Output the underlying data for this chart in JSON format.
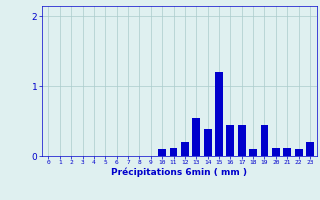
{
  "hours": [
    0,
    1,
    2,
    3,
    4,
    5,
    6,
    7,
    8,
    9,
    10,
    11,
    12,
    13,
    14,
    15,
    16,
    17,
    18,
    19,
    20,
    21,
    22,
    23
  ],
  "values": [
    0.0,
    0.0,
    0.0,
    0.0,
    0.0,
    0.0,
    0.0,
    0.0,
    0.0,
    0.0,
    0.1,
    0.12,
    0.2,
    0.55,
    0.38,
    1.2,
    0.45,
    0.45,
    0.1,
    0.45,
    0.12,
    0.12,
    0.1,
    0.2
  ],
  "bar_color": "#0000cc",
  "bg_color": "#dff0f0",
  "grid_color": "#aacccc",
  "xlabel": "Précipitations 6min ( mm )",
  "xlabel_color": "#0000cc",
  "tick_color": "#0000cc",
  "ylim": [
    0,
    2.15
  ],
  "yticks": [
    0,
    1,
    2
  ],
  "bar_width": 0.7
}
